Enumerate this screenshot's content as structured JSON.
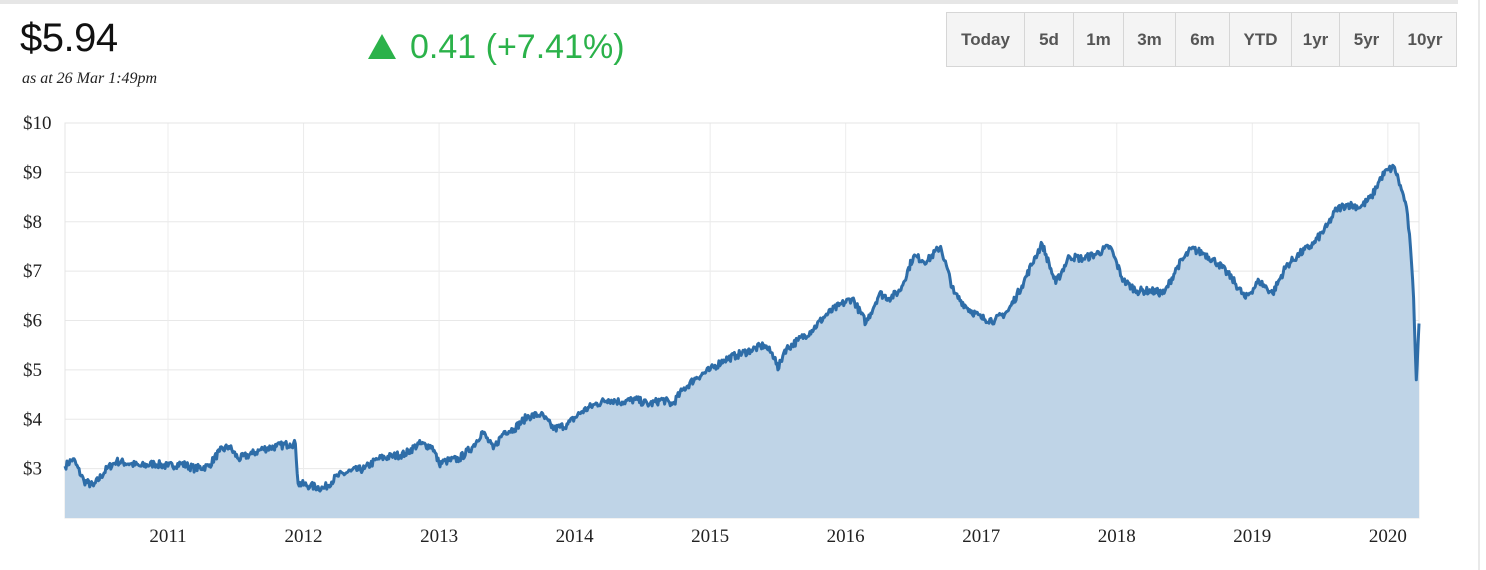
{
  "quote": {
    "price": "$5.94",
    "as_at": "as at 26 Mar 1:49pm",
    "change": "0.41 (+7.41%)",
    "change_direction": "up",
    "up_color": "#2bb24a"
  },
  "range_buttons": [
    "Today",
    "5d",
    "1m",
    "3m",
    "6m",
    "YTD",
    "1yr",
    "5yr",
    "10yr"
  ],
  "chart_data": {
    "type": "area",
    "title": "",
    "xlabel": "",
    "ylabel": "",
    "ylim": [
      2,
      10
    ],
    "xlim": [
      2010.24,
      2020.23
    ],
    "y_ticks": [
      3,
      4,
      5,
      6,
      7,
      8,
      9,
      10
    ],
    "y_tick_labels": [
      "$3",
      "$4",
      "$5",
      "$6",
      "$7",
      "$8",
      "$9",
      "$10"
    ],
    "x_ticks": [
      2011,
      2012,
      2013,
      2014,
      2015,
      2016,
      2017,
      2018,
      2019,
      2020
    ],
    "x_tick_labels": [
      "2011",
      "2012",
      "2013",
      "2014",
      "2015",
      "2016",
      "2017",
      "2018",
      "2019",
      "2020"
    ],
    "grid": true,
    "line_color": "#2e6da8",
    "fill_color": "#bfd4e7",
    "series": [
      {
        "x": [
          2010.24,
          2010.3,
          2010.38,
          2010.45,
          2010.55,
          2010.62,
          2010.72,
          2010.8,
          2010.9,
          2011.0,
          2011.1,
          2011.2,
          2011.3,
          2011.38,
          2011.45,
          2011.52,
          2011.62,
          2011.7,
          2011.8,
          2011.9,
          2011.94,
          2011.96,
          2012.05,
          2012.15,
          2012.25,
          2012.35,
          2012.45,
          2012.55,
          2012.65,
          2012.75,
          2012.85,
          2012.95,
          2013.0,
          2013.05,
          2013.15,
          2013.25,
          2013.32,
          2013.4,
          2013.48,
          2013.55,
          2013.65,
          2013.75,
          2013.85,
          2013.95,
          2014.05,
          2014.15,
          2014.25,
          2014.35,
          2014.45,
          2014.55,
          2014.65,
          2014.72,
          2014.8,
          2014.9,
          2015.0,
          2015.1,
          2015.2,
          2015.3,
          2015.4,
          2015.48,
          2015.5,
          2015.55,
          2015.65,
          2015.75,
          2015.85,
          2015.95,
          2016.05,
          2016.15,
          2016.25,
          2016.32,
          2016.4,
          2016.5,
          2016.6,
          2016.7,
          2016.8,
          2016.9,
          2017.0,
          2017.1,
          2017.2,
          2017.3,
          2017.4,
          2017.45,
          2017.55,
          2017.65,
          2017.75,
          2017.85,
          2017.95,
          2018.05,
          2018.15,
          2018.25,
          2018.35,
          2018.45,
          2018.55,
          2018.65,
          2018.75,
          2018.85,
          2018.95,
          2019.05,
          2019.15,
          2019.25,
          2019.35,
          2019.45,
          2019.55,
          2019.62,
          2019.7,
          2019.8,
          2019.88,
          2019.95,
          2020.0,
          2020.05,
          2020.1,
          2020.13,
          2020.16,
          2020.19,
          2020.21,
          2020.23
        ],
        "y": [
          3.05,
          3.2,
          2.75,
          2.65,
          3.0,
          3.15,
          3.1,
          3.05,
          3.1,
          3.05,
          3.1,
          3.0,
          3.05,
          3.35,
          3.45,
          3.2,
          3.3,
          3.4,
          3.45,
          3.5,
          3.5,
          2.7,
          2.65,
          2.6,
          2.85,
          2.95,
          3.0,
          3.2,
          3.25,
          3.3,
          3.5,
          3.45,
          3.1,
          3.15,
          3.2,
          3.45,
          3.75,
          3.4,
          3.75,
          3.8,
          4.05,
          4.1,
          3.8,
          3.9,
          4.15,
          4.3,
          4.4,
          4.35,
          4.4,
          4.3,
          4.4,
          4.3,
          4.6,
          4.85,
          5.0,
          5.2,
          5.3,
          5.4,
          5.5,
          5.25,
          5.0,
          5.4,
          5.6,
          5.8,
          6.1,
          6.3,
          6.45,
          5.95,
          6.55,
          6.45,
          6.6,
          7.3,
          7.2,
          7.5,
          6.55,
          6.25,
          6.05,
          6.0,
          6.2,
          6.7,
          7.3,
          7.55,
          6.75,
          7.3,
          7.25,
          7.35,
          7.5,
          6.8,
          6.6,
          6.6,
          6.55,
          7.1,
          7.45,
          7.35,
          7.15,
          6.85,
          6.45,
          6.8,
          6.55,
          7.1,
          7.35,
          7.55,
          7.9,
          8.25,
          8.35,
          8.3,
          8.5,
          8.9,
          9.05,
          9.1,
          8.65,
          8.4,
          7.75,
          6.45,
          4.8,
          5.94
        ]
      }
    ]
  }
}
